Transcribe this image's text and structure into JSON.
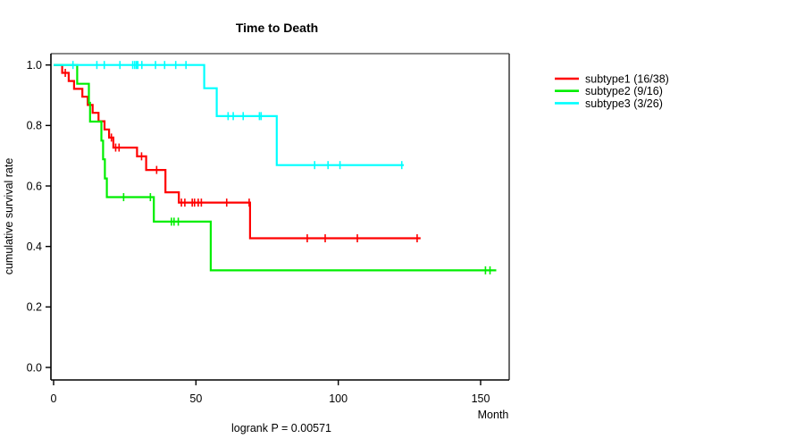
{
  "chart_data": {
    "type": "line",
    "subtype": "kaplan-meier-step-survival",
    "title": "Time to Death",
    "xlabel": "Month",
    "ylabel": "cumulative survival rate",
    "annotation": "logrank P = 0.00571",
    "grid": false,
    "legend_position": "right-outside-top",
    "xlim": [
      0,
      160
    ],
    "ylim": [
      0.0,
      1.0
    ],
    "xticks": [
      {
        "value": 0,
        "label": "0"
      },
      {
        "value": 50,
        "label": "50"
      },
      {
        "value": 100,
        "label": "100"
      },
      {
        "value": 150,
        "label": "150"
      }
    ],
    "yticks": [
      {
        "value": 0.0,
        "label": "0.0"
      },
      {
        "value": 0.2,
        "label": "0.2"
      },
      {
        "value": 0.4,
        "label": "0.4"
      },
      {
        "value": 0.6,
        "label": "0.6"
      },
      {
        "value": 0.8,
        "label": "0.8"
      },
      {
        "value": 1.0,
        "label": "1.0"
      }
    ],
    "series": [
      {
        "name": "subtype1 (16/38)",
        "color": "#ff0000",
        "n": 38,
        "events": 16,
        "steps": [
          [
            0,
            1.0
          ],
          [
            3.0,
            0.974
          ],
          [
            5.3,
            0.947
          ],
          [
            7.2,
            0.921
          ],
          [
            10.1,
            0.895
          ],
          [
            12.0,
            0.868
          ],
          [
            13.7,
            0.842
          ],
          [
            15.8,
            0.814
          ],
          [
            17.9,
            0.787
          ],
          [
            19.5,
            0.76
          ],
          [
            21.0,
            0.727
          ],
          [
            29.3,
            0.698
          ],
          [
            32.5,
            0.653
          ],
          [
            39.3,
            0.579
          ],
          [
            44.0,
            0.545
          ],
          [
            69.0,
            0.427
          ]
        ],
        "end_time": 128.9,
        "censors": [
          [
            4.1,
            0.974
          ],
          [
            20.3,
            0.76
          ],
          [
            21.8,
            0.727
          ],
          [
            23.0,
            0.727
          ],
          [
            30.9,
            0.698
          ],
          [
            36.2,
            0.653
          ],
          [
            44.9,
            0.545
          ],
          [
            46.1,
            0.545
          ],
          [
            48.7,
            0.545
          ],
          [
            49.5,
            0.545
          ],
          [
            50.8,
            0.545
          ],
          [
            51.9,
            0.545
          ],
          [
            60.8,
            0.545
          ],
          [
            68.7,
            0.545
          ],
          [
            89.1,
            0.427
          ],
          [
            95.4,
            0.427
          ],
          [
            106.7,
            0.427
          ],
          [
            127.7,
            0.427
          ]
        ]
      },
      {
        "name": "subtype2 (9/16)",
        "color": "#00ee00",
        "n": 16,
        "events": 9,
        "steps": [
          [
            0,
            1.0
          ],
          [
            8.3,
            0.938
          ],
          [
            12.4,
            0.875
          ],
          [
            12.8,
            0.813
          ],
          [
            16.8,
            0.75
          ],
          [
            17.4,
            0.688
          ],
          [
            18.0,
            0.625
          ],
          [
            18.7,
            0.563
          ],
          [
            35.2,
            0.482
          ],
          [
            55.2,
            0.321
          ]
        ],
        "end_time": 155.5,
        "censors": [
          [
            24.6,
            0.563
          ],
          [
            34.0,
            0.563
          ],
          [
            41.4,
            0.482
          ],
          [
            42.3,
            0.482
          ],
          [
            43.8,
            0.482
          ],
          [
            151.7,
            0.321
          ],
          [
            153.3,
            0.321
          ]
        ]
      },
      {
        "name": "subtype3 (3/26)",
        "color": "#00ffff",
        "n": 26,
        "events": 3,
        "steps": [
          [
            0,
            1.0
          ],
          [
            52.9,
            0.923
          ],
          [
            57.3,
            0.831
          ],
          [
            78.4,
            0.669
          ]
        ],
        "end_time": 123.0,
        "censors": [
          [
            6.8,
            1.0
          ],
          [
            15.2,
            1.0
          ],
          [
            17.8,
            1.0
          ],
          [
            23.3,
            1.0
          ],
          [
            27.8,
            1.0
          ],
          [
            28.5,
            1.0
          ],
          [
            29.1,
            1.0
          ],
          [
            29.6,
            1.0
          ],
          [
            31.0,
            1.0
          ],
          [
            35.8,
            1.0
          ],
          [
            39.0,
            1.0
          ],
          [
            42.9,
            1.0
          ],
          [
            46.5,
            1.0
          ],
          [
            61.3,
            0.831
          ],
          [
            63.1,
            0.831
          ],
          [
            66.6,
            0.831
          ],
          [
            72.3,
            0.831
          ],
          [
            72.9,
            0.831
          ],
          [
            91.7,
            0.669
          ],
          [
            96.4,
            0.669
          ],
          [
            100.6,
            0.669
          ],
          [
            122.3,
            0.669
          ]
        ]
      }
    ]
  }
}
